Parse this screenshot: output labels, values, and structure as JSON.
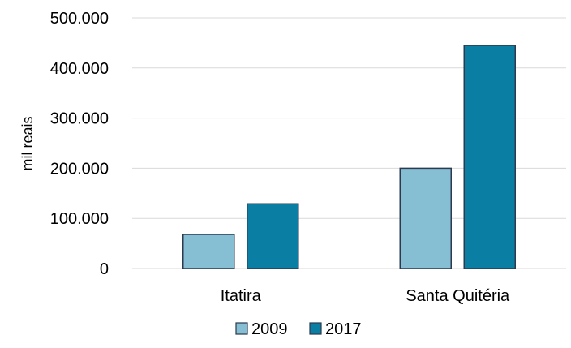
{
  "chart_data": {
    "type": "bar",
    "title": "",
    "xlabel": "",
    "ylabel": "mil reais",
    "categories": [
      "Itatira",
      "Santa Quitéria"
    ],
    "series": [
      {
        "name": "2009",
        "values": [
          68000,
          200000
        ],
        "color": "#86bfd3"
      },
      {
        "name": "2017",
        "values": [
          129000,
          445000
        ],
        "color": "#0a7fa3"
      }
    ],
    "ylim": [
      0,
      500000
    ],
    "yticks": [
      0,
      100000,
      200000,
      300000,
      400000,
      500000
    ],
    "ytick_labels": [
      "0",
      "100.000",
      "200.000",
      "300.000",
      "400.000",
      "500.000"
    ],
    "grid": true,
    "legend_position": "bottom-center",
    "bar_edge_color": "#2b3a4f",
    "grid_color": "#d9d9d9"
  }
}
